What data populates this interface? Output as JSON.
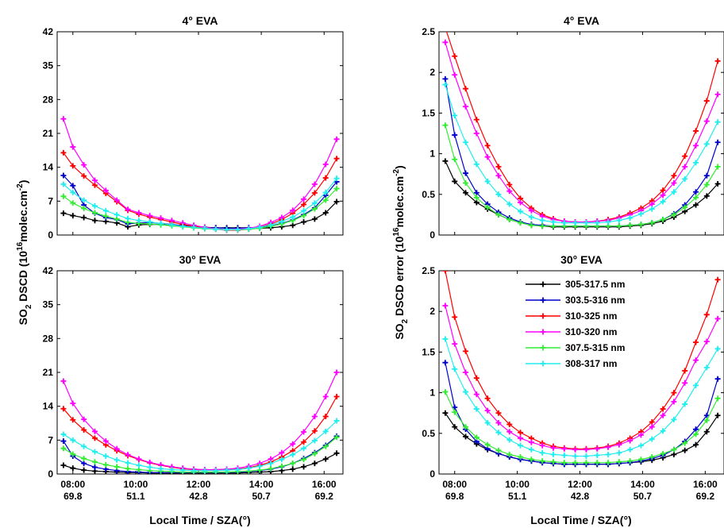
{
  "figure": {
    "left_ylabel": "SO2 DSCD (10^16 molec.cm^-2)",
    "right_ylabel": "SO2 DSCD error (10^16 molec.cm^-2)",
    "xlabel": "Local Time / SZA(°)",
    "xtick_times": [
      "08:00",
      "10:00",
      "12:00",
      "14:00",
      "16:00"
    ],
    "xtick_sza": [
      "69.8",
      "51.1",
      "42.8",
      "50.7",
      "69.2"
    ],
    "legend": [
      "305-317.5 nm",
      "303.5-316 nm",
      "310-325 nm",
      "310-320 nm",
      "307.5-315 nm",
      "308-317 nm"
    ]
  },
  "chart_data": [
    {
      "type": "line",
      "title": "4° EVA",
      "ylabel": "SO2 DSCD (10^16 molec.cm^-2)",
      "ylim": [
        0,
        42
      ],
      "yticks": [
        0,
        7,
        14,
        21,
        28,
        35,
        42
      ],
      "xlim": [
        7.5,
        16.6
      ],
      "xticks": [
        8,
        10,
        12,
        14,
        16
      ],
      "grid": false,
      "x": [
        7.7,
        8.0,
        8.35,
        8.7,
        9.05,
        9.4,
        9.75,
        10.1,
        10.45,
        10.8,
        11.15,
        11.5,
        11.85,
        12.2,
        12.55,
        12.9,
        13.25,
        13.6,
        13.95,
        14.3,
        14.65,
        15.0,
        15.35,
        15.7,
        16.05,
        16.4
      ],
      "series": [
        {
          "name": "305-317.5 nm",
          "color": "#000000",
          "values": [
            4.5,
            4.0,
            3.6,
            3.0,
            2.8,
            2.5,
            1.7,
            2.1,
            2.2,
            2.2,
            2.1,
            2.0,
            1.8,
            1.6,
            1.5,
            1.5,
            1.5,
            1.5,
            1.4,
            1.5,
            1.7,
            2.0,
            2.7,
            3.3,
            4.6,
            6.9
          ]
        },
        {
          "name": "303.5-316 nm",
          "color": "#0000cc",
          "values": [
            12.3,
            10.2,
            6.2,
            4.5,
            3.6,
            3.2,
            2.3,
            2.5,
            2.6,
            2.4,
            2.2,
            1.9,
            1.7,
            1.5,
            1.5,
            1.4,
            1.4,
            1.5,
            1.6,
            1.9,
            2.4,
            3.1,
            4.2,
            5.6,
            8.2,
            11.0
          ]
        },
        {
          "name": "310-325 nm",
          "color": "#ff0000",
          "values": [
            17.0,
            14.3,
            12.2,
            10.3,
            8.6,
            6.9,
            5.1,
            4.3,
            3.7,
            3.2,
            2.7,
            2.2,
            1.8,
            1.5,
            1.2,
            1.0,
            1.0,
            1.2,
            1.6,
            2.3,
            3.2,
            4.5,
            6.3,
            8.7,
            11.8,
            15.8
          ]
        },
        {
          "name": "310-320 nm",
          "color": "#ff00ff",
          "values": [
            24.0,
            18.2,
            14.5,
            11.3,
            9.2,
            7.2,
            5.3,
            4.6,
            4.0,
            3.5,
            3.0,
            2.5,
            2.0,
            1.6,
            1.3,
            1.1,
            1.2,
            1.4,
            1.8,
            2.6,
            3.6,
            5.1,
            7.4,
            10.5,
            14.6,
            19.8
          ]
        },
        {
          "name": "307.5-315 nm",
          "color": "#33ee33",
          "values": [
            8.0,
            6.6,
            5.5,
            4.6,
            3.9,
            3.3,
            2.6,
            2.4,
            2.3,
            2.1,
            1.9,
            1.7,
            1.5,
            1.3,
            1.2,
            1.1,
            1.1,
            1.2,
            1.4,
            1.8,
            2.3,
            3.0,
            4.0,
            5.4,
            7.2,
            9.6
          ]
        },
        {
          "name": "308-317 nm",
          "color": "#22eeee",
          "values": [
            10.5,
            8.8,
            7.2,
            6.0,
            5.0,
            4.2,
            3.4,
            3.0,
            2.7,
            2.4,
            2.1,
            1.8,
            1.6,
            1.4,
            1.2,
            1.1,
            1.1,
            1.3,
            1.6,
            2.1,
            2.8,
            3.7,
            5.0,
            6.6,
            8.8,
            11.7
          ]
        }
      ]
    },
    {
      "type": "line",
      "title": "4° EVA",
      "ylabel": "SO2 DSCD error (10^16 molec.cm^-2)",
      "ylim": [
        0,
        2.5
      ],
      "yticks": [
        0,
        0.5,
        1,
        1.5,
        2,
        2.5
      ],
      "xlim": [
        7.5,
        16.6
      ],
      "xticks": [
        8,
        10,
        12,
        14,
        16
      ],
      "grid": false,
      "x": [
        7.7,
        8.0,
        8.35,
        8.7,
        9.05,
        9.4,
        9.75,
        10.1,
        10.45,
        10.8,
        11.15,
        11.5,
        11.85,
        12.2,
        12.55,
        12.9,
        13.25,
        13.6,
        13.95,
        14.3,
        14.65,
        15.0,
        15.35,
        15.7,
        16.05,
        16.4
      ],
      "series": [
        {
          "name": "305-317.5 nm",
          "color": "#000000",
          "values": [
            0.91,
            0.66,
            0.52,
            0.4,
            0.32,
            0.25,
            0.19,
            0.15,
            0.12,
            0.11,
            0.1,
            0.1,
            0.1,
            0.1,
            0.1,
            0.1,
            0.1,
            0.11,
            0.12,
            0.14,
            0.17,
            0.22,
            0.29,
            0.37,
            0.48,
            0.63
          ]
        },
        {
          "name": "303.5-316 nm",
          "color": "#0000cc",
          "values": [
            1.92,
            1.23,
            0.76,
            0.52,
            0.38,
            0.28,
            0.21,
            0.16,
            0.13,
            0.12,
            0.11,
            0.11,
            0.11,
            0.11,
            0.11,
            0.11,
            0.11,
            0.12,
            0.13,
            0.15,
            0.19,
            0.26,
            0.37,
            0.53,
            0.73,
            1.14
          ]
        },
        {
          "name": "310-325 nm",
          "color": "#ff0000",
          "values": [
            2.55,
            2.2,
            1.8,
            1.42,
            1.1,
            0.84,
            0.62,
            0.45,
            0.33,
            0.25,
            0.2,
            0.17,
            0.16,
            0.16,
            0.17,
            0.19,
            0.22,
            0.27,
            0.33,
            0.42,
            0.55,
            0.73,
            0.97,
            1.28,
            1.65,
            2.14
          ]
        },
        {
          "name": "310-320 nm",
          "color": "#ff00ff",
          "values": [
            2.37,
            1.97,
            1.58,
            1.25,
            0.96,
            0.73,
            0.54,
            0.4,
            0.3,
            0.23,
            0.19,
            0.17,
            0.16,
            0.16,
            0.17,
            0.18,
            0.21,
            0.25,
            0.3,
            0.38,
            0.49,
            0.64,
            0.84,
            1.1,
            1.4,
            1.73
          ]
        },
        {
          "name": "307.5-315 nm",
          "color": "#33ee33",
          "values": [
            1.35,
            0.93,
            0.64,
            0.46,
            0.34,
            0.25,
            0.19,
            0.15,
            0.12,
            0.11,
            0.11,
            0.11,
            0.11,
            0.11,
            0.11,
            0.11,
            0.11,
            0.12,
            0.13,
            0.15,
            0.19,
            0.25,
            0.34,
            0.46,
            0.62,
            0.84
          ]
        },
        {
          "name": "308-317 nm",
          "color": "#22eeee",
          "values": [
            1.85,
            1.47,
            1.14,
            0.87,
            0.66,
            0.5,
            0.38,
            0.29,
            0.22,
            0.18,
            0.16,
            0.15,
            0.15,
            0.15,
            0.15,
            0.16,
            0.18,
            0.21,
            0.26,
            0.32,
            0.41,
            0.53,
            0.69,
            0.89,
            1.12,
            1.39
          ]
        }
      ]
    },
    {
      "type": "line",
      "title": "30° EVA",
      "ylabel": "SO2 DSCD (10^16 molec.cm^-2)",
      "ylim": [
        0,
        42
      ],
      "yticks": [
        0,
        7,
        14,
        21,
        28,
        35,
        42
      ],
      "xlim": [
        7.5,
        16.6
      ],
      "xticks": [
        8,
        10,
        12,
        14,
        16
      ],
      "grid": false,
      "x": [
        7.7,
        8.0,
        8.35,
        8.7,
        9.05,
        9.4,
        9.75,
        10.1,
        10.45,
        10.8,
        11.15,
        11.5,
        11.85,
        12.2,
        12.55,
        12.9,
        13.25,
        13.6,
        13.95,
        14.3,
        14.65,
        15.0,
        15.35,
        15.7,
        16.05,
        16.4
      ],
      "series": [
        {
          "name": "305-317.5 nm",
          "color": "#000000",
          "values": [
            1.8,
            1.2,
            0.8,
            0.6,
            0.5,
            0.4,
            0.3,
            0.3,
            0.2,
            0.2,
            0.2,
            0.2,
            0.2,
            0.2,
            0.2,
            0.2,
            0.2,
            0.3,
            0.4,
            0.5,
            0.7,
            1.0,
            1.5,
            2.2,
            3.1,
            4.3
          ]
        },
        {
          "name": "303.5-316 nm",
          "color": "#0000cc",
          "values": [
            6.8,
            3.7,
            2.2,
            1.4,
            1.0,
            0.7,
            0.5,
            0.4,
            0.3,
            0.3,
            0.3,
            0.3,
            0.3,
            0.3,
            0.3,
            0.3,
            0.4,
            0.5,
            0.7,
            1.0,
            1.5,
            2.2,
            3.2,
            4.4,
            5.9,
            7.8
          ]
        },
        {
          "name": "310-325 nm",
          "color": "#ff0000",
          "values": [
            13.5,
            11.2,
            9.1,
            7.4,
            6.0,
            4.8,
            3.8,
            3.0,
            2.3,
            1.8,
            1.4,
            1.1,
            0.9,
            0.8,
            0.8,
            0.8,
            1.0,
            1.3,
            1.8,
            2.5,
            3.5,
            4.8,
            6.6,
            8.9,
            11.9,
            16.0
          ]
        },
        {
          "name": "310-320 nm",
          "color": "#ff00ff",
          "values": [
            19.2,
            14.6,
            11.3,
            8.8,
            6.8,
            5.2,
            4.0,
            3.1,
            2.4,
            1.9,
            1.5,
            1.2,
            1.0,
            0.9,
            0.9,
            1.0,
            1.2,
            1.6,
            2.2,
            3.1,
            4.4,
            6.2,
            8.7,
            11.9,
            16.0,
            21.0
          ]
        },
        {
          "name": "307.5-315 nm",
          "color": "#33ee33",
          "values": [
            5.3,
            4.1,
            3.2,
            2.5,
            1.9,
            1.5,
            1.1,
            0.9,
            0.7,
            0.6,
            0.5,
            0.4,
            0.4,
            0.4,
            0.4,
            0.4,
            0.5,
            0.6,
            0.8,
            1.1,
            1.6,
            2.2,
            3.0,
            4.2,
            5.7,
            7.6
          ]
        },
        {
          "name": "308-317 nm",
          "color": "#22eeee",
          "values": [
            8.2,
            7.0,
            5.7,
            4.6,
            3.7,
            2.9,
            2.3,
            1.8,
            1.4,
            1.1,
            0.9,
            0.8,
            0.7,
            0.7,
            0.7,
            0.8,
            0.9,
            1.2,
            1.6,
            2.2,
            3.0,
            4.0,
            5.3,
            6.9,
            8.8,
            11.0
          ]
        }
      ]
    },
    {
      "type": "line",
      "title": "30° EVA",
      "ylabel": "SO2 DSCD error (10^16 molec.cm^-2)",
      "ylim": [
        0,
        2.5
      ],
      "yticks": [
        0,
        0.5,
        1,
        1.5,
        2,
        2.5
      ],
      "xlim": [
        7.5,
        16.6
      ],
      "xticks": [
        8,
        10,
        12,
        14,
        16
      ],
      "grid": false,
      "legend_position": "top-right",
      "x": [
        7.7,
        8.0,
        8.35,
        8.7,
        9.05,
        9.4,
        9.75,
        10.1,
        10.45,
        10.8,
        11.15,
        11.5,
        11.85,
        12.2,
        12.55,
        12.9,
        13.25,
        13.6,
        13.95,
        14.3,
        14.65,
        15.0,
        15.35,
        15.7,
        16.05,
        16.4
      ],
      "series": [
        {
          "name": "305-317.5 nm",
          "color": "#000000",
          "values": [
            0.75,
            0.58,
            0.46,
            0.37,
            0.3,
            0.25,
            0.21,
            0.18,
            0.16,
            0.14,
            0.13,
            0.12,
            0.12,
            0.12,
            0.12,
            0.12,
            0.13,
            0.14,
            0.15,
            0.17,
            0.2,
            0.24,
            0.29,
            0.36,
            0.52,
            0.72
          ]
        },
        {
          "name": "303.5-316 nm",
          "color": "#0000cc",
          "values": [
            1.37,
            0.82,
            0.55,
            0.4,
            0.31,
            0.25,
            0.21,
            0.18,
            0.16,
            0.14,
            0.13,
            0.12,
            0.12,
            0.12,
            0.12,
            0.12,
            0.13,
            0.14,
            0.16,
            0.19,
            0.23,
            0.3,
            0.4,
            0.55,
            0.72,
            1.17
          ]
        },
        {
          "name": "310-325 nm",
          "color": "#ff0000",
          "values": [
            2.5,
            1.93,
            1.51,
            1.18,
            0.93,
            0.75,
            0.61,
            0.51,
            0.44,
            0.38,
            0.34,
            0.32,
            0.31,
            0.31,
            0.32,
            0.34,
            0.38,
            0.44,
            0.52,
            0.64,
            0.8,
            1.0,
            1.27,
            1.62,
            1.96,
            2.39
          ]
        },
        {
          "name": "310-320 nm",
          "color": "#ff00ff",
          "values": [
            2.07,
            1.6,
            1.25,
            0.98,
            0.78,
            0.63,
            0.52,
            0.44,
            0.39,
            0.35,
            0.32,
            0.31,
            0.3,
            0.3,
            0.31,
            0.33,
            0.36,
            0.41,
            0.48,
            0.58,
            0.72,
            0.89,
            1.12,
            1.4,
            1.63,
            1.91
          ]
        },
        {
          "name": "307.5-315 nm",
          "color": "#33ee33",
          "values": [
            1.01,
            0.76,
            0.58,
            0.45,
            0.36,
            0.29,
            0.24,
            0.21,
            0.18,
            0.16,
            0.15,
            0.14,
            0.14,
            0.14,
            0.14,
            0.14,
            0.15,
            0.16,
            0.18,
            0.21,
            0.25,
            0.3,
            0.38,
            0.49,
            0.66,
            0.93
          ]
        },
        {
          "name": "308-317 nm",
          "color": "#22eeee",
          "values": [
            1.66,
            1.29,
            1.01,
            0.8,
            0.63,
            0.51,
            0.42,
            0.35,
            0.3,
            0.26,
            0.24,
            0.23,
            0.22,
            0.22,
            0.23,
            0.24,
            0.26,
            0.3,
            0.35,
            0.43,
            0.53,
            0.67,
            0.86,
            1.09,
            1.31,
            1.54
          ]
        }
      ]
    }
  ]
}
